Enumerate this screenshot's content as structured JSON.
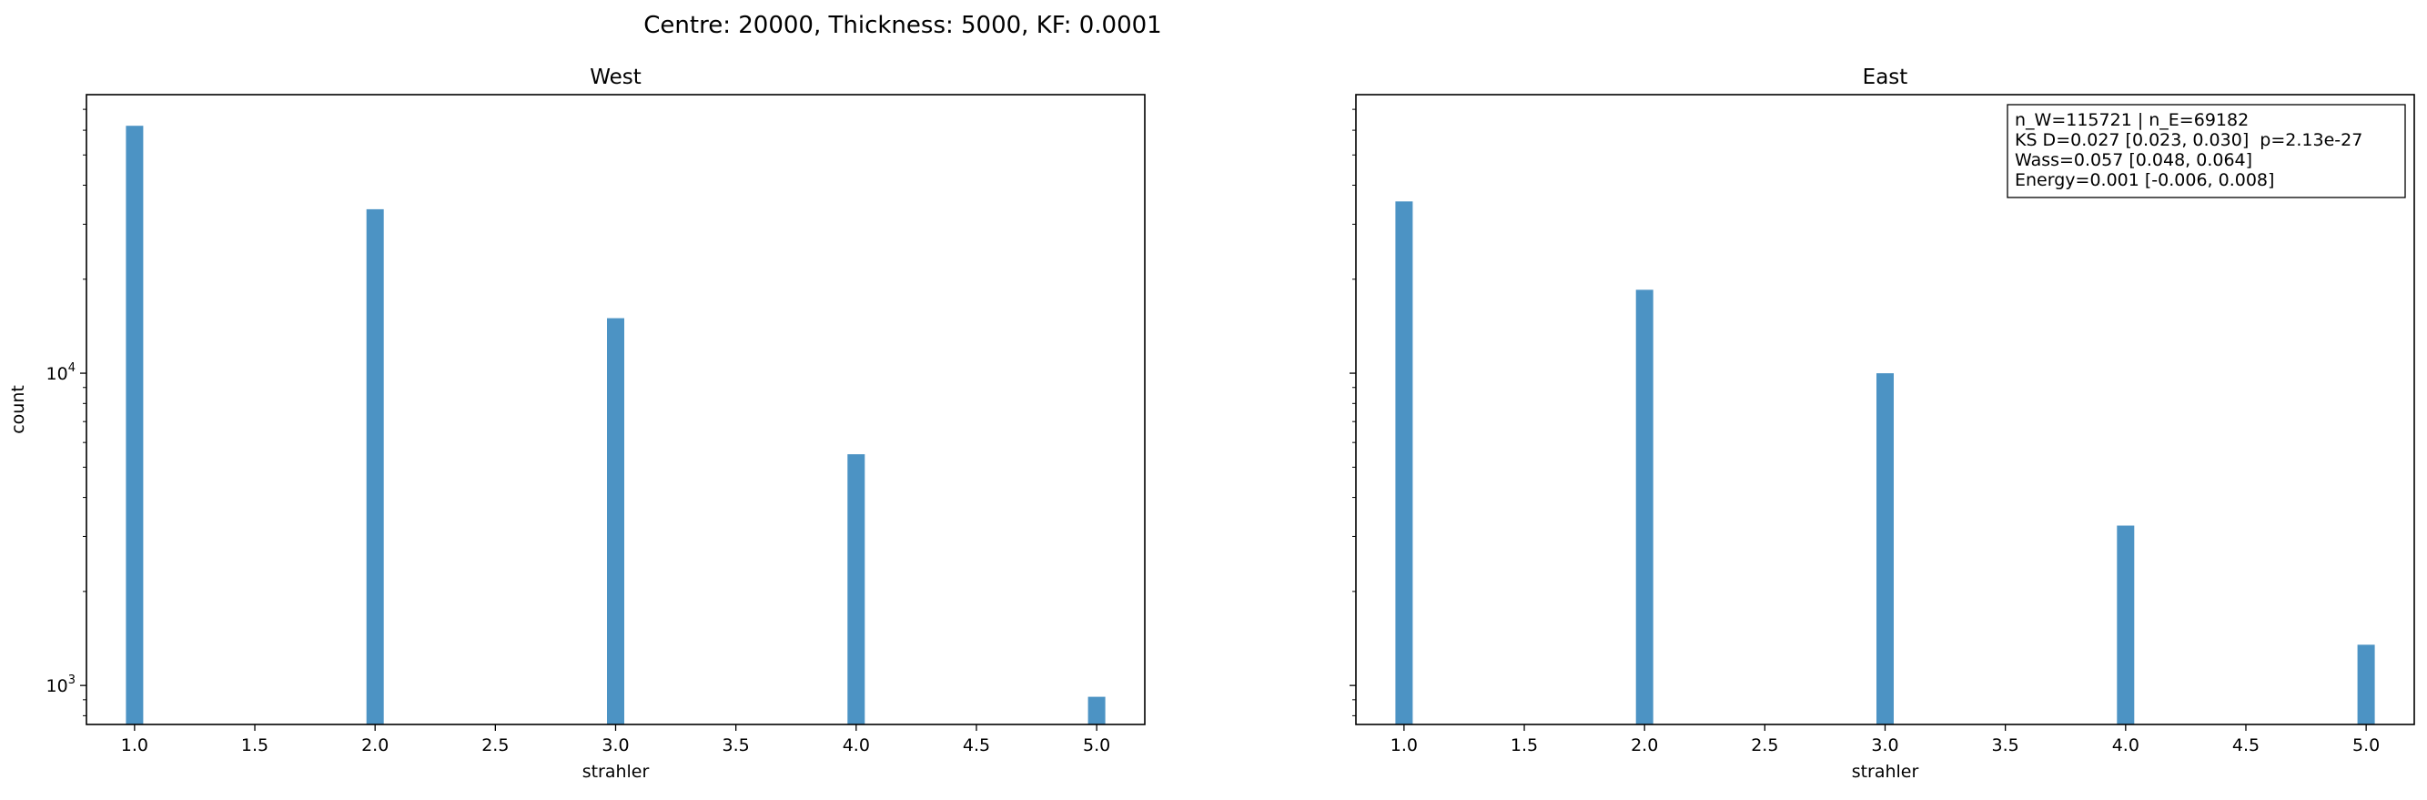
{
  "figure": {
    "suptitle": "Centre: 20000, Thickness: 5000, KF: 0.0001"
  },
  "colors": {
    "bar": "#4c93c4",
    "axis": "#000000",
    "background": "#ffffff"
  },
  "chart_data": [
    {
      "type": "bar",
      "title": "West",
      "xlabel": "strahler",
      "ylabel": "count",
      "yscale": "log",
      "xlim": [
        0.8,
        5.2
      ],
      "ylim": [
        750,
        78000
      ],
      "xticks": [
        "1.0",
        "1.5",
        "2.0",
        "2.5",
        "3.0",
        "3.5",
        "4.0",
        "4.5",
        "5.0"
      ],
      "yticks": [
        {
          "value": 1000,
          "label": "10",
          "exp": "3"
        },
        {
          "value": 10000,
          "label": "10",
          "exp": "4"
        }
      ],
      "show_ytick_labels": true,
      "grid": false,
      "x": [
        1,
        2,
        3,
        4,
        5
      ],
      "values": [
        62000,
        33500,
        15000,
        5500,
        920
      ]
    },
    {
      "type": "bar",
      "title": "East",
      "xlabel": "strahler",
      "ylabel": "",
      "yscale": "log",
      "xlim": [
        0.8,
        5.2
      ],
      "ylim": [
        750,
        78000
      ],
      "xticks": [
        "1.0",
        "1.5",
        "2.0",
        "2.5",
        "3.0",
        "3.5",
        "4.0",
        "4.5",
        "5.0"
      ],
      "yticks": [
        {
          "value": 1000,
          "label": "10",
          "exp": "3"
        },
        {
          "value": 10000,
          "label": "10",
          "exp": "4"
        }
      ],
      "show_ytick_labels": false,
      "grid": false,
      "x": [
        1,
        2,
        3,
        4,
        5
      ],
      "values": [
        35500,
        18500,
        10000,
        3250,
        1350
      ],
      "annotation": [
        "n_W=115721 | n_E=69182",
        "KS D=0.027 [0.023, 0.030]  p=2.13e-27",
        "Wass=0.057 [0.048, 0.064]",
        "Energy=0.001 [-0.006, 0.008]"
      ]
    }
  ]
}
